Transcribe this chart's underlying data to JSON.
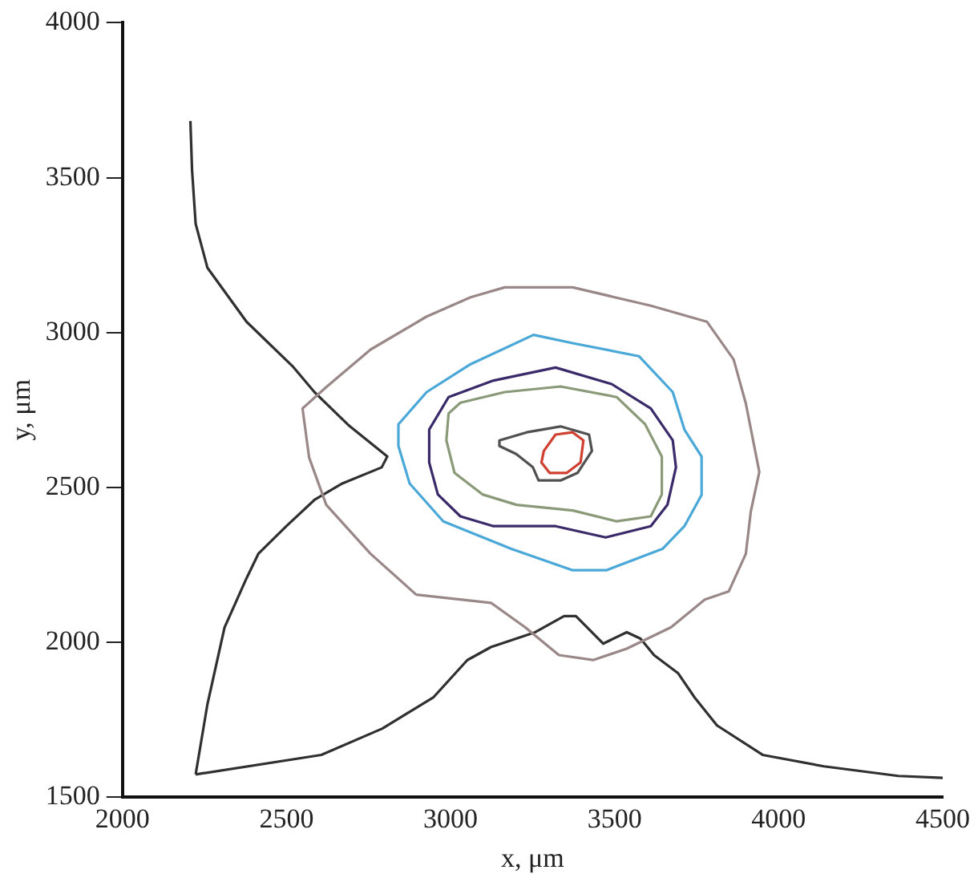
{
  "chart_data": {
    "type": "line",
    "xlabel": "x, μm",
    "ylabel": "y, μm",
    "xlim": [
      2000,
      4500
    ],
    "ylim": [
      1500,
      4000
    ],
    "xticks": [
      2000,
      2500,
      3000,
      3500,
      4000,
      4500
    ],
    "yticks": [
      1500,
      2000,
      2500,
      3000,
      3500,
      4000
    ],
    "grid": false,
    "legend": false,
    "marker": "none",
    "line_style": "solid",
    "series": [
      {
        "color": "#303030",
        "x": [
          2207,
          2212,
          2223,
          2259,
          2378,
          2518,
          2585,
          2688,
          2807,
          2790,
          2670,
          2585,
          2499,
          2414,
          2378,
          2311,
          2259,
          2223
        ],
        "values": [
          3683,
          3525,
          3351,
          3209,
          3035,
          2892,
          2808,
          2702,
          2600,
          2565,
          2513,
          2460,
          2375,
          2286,
          2207,
          2048,
          1801,
          1574
        ]
      },
      {
        "color": "#303030",
        "x": [
          2223,
          2606,
          2792,
          2947,
          3051,
          3123,
          3258,
          3346,
          3382,
          3465,
          3537,
          3579,
          3620,
          3693,
          3744,
          3812,
          3951,
          4138,
          4365,
          4500
        ],
        "values": [
          1574,
          1637,
          1722,
          1822,
          1943,
          1985,
          2033,
          2085,
          2085,
          1996,
          2033,
          2012,
          1959,
          1901,
          1822,
          1732,
          1637,
          1600,
          1569,
          1563
        ]
      }
    ]
  }
}
